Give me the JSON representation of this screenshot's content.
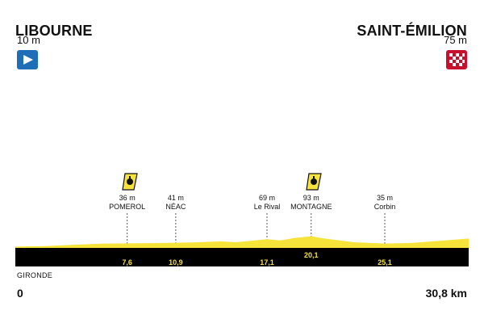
{
  "start": {
    "name": "LIBOURNE",
    "altitude": "10 m",
    "flag_icon": "start-flag-icon",
    "flag_color": "#1f6fb8"
  },
  "finish": {
    "name": "SAINT-ÉMILION",
    "altitude": "75 m",
    "flag_icon": "checkered-flag-icon",
    "flag_color": "#c8102e"
  },
  "region": "GIRONDE",
  "distance": {
    "start": "0",
    "end": "30,8 km"
  },
  "colors": {
    "profile_fill": "#f6e43a",
    "road_band": "#000000",
    "km_text": "#f4e04d"
  },
  "waypoints": [
    {
      "altitude": "36 m",
      "name": "POMEROL",
      "km": "7,6",
      "sprint": true
    },
    {
      "altitude": "41 m",
      "name": "NÉAC",
      "km": "10,9",
      "sprint": false
    },
    {
      "altitude": "69 m",
      "name": "Le Rival",
      "km": "17,1",
      "sprint": false
    },
    {
      "altitude": "93 m",
      "name": "MONTAGNE",
      "km": "20,1",
      "sprint": true
    },
    {
      "altitude": "35 m",
      "name": "Corbin",
      "km": "25,1",
      "sprint": false
    }
  ],
  "chart_data": {
    "type": "area",
    "xlabel": "",
    "ylabel": "",
    "x": [
      0,
      2,
      4,
      6,
      7.6,
      9,
      10.9,
      12,
      14,
      15,
      17.1,
      18,
      19,
      20.1,
      21,
      23,
      25.1,
      27,
      29,
      30.8
    ],
    "y": [
      10,
      15,
      25,
      35,
      36,
      38,
      41,
      43,
      52,
      45,
      69,
      60,
      80,
      93,
      75,
      45,
      35,
      40,
      58,
      75
    ],
    "xlim": [
      0,
      30.8
    ],
    "ylim": [
      0,
      1000
    ]
  }
}
